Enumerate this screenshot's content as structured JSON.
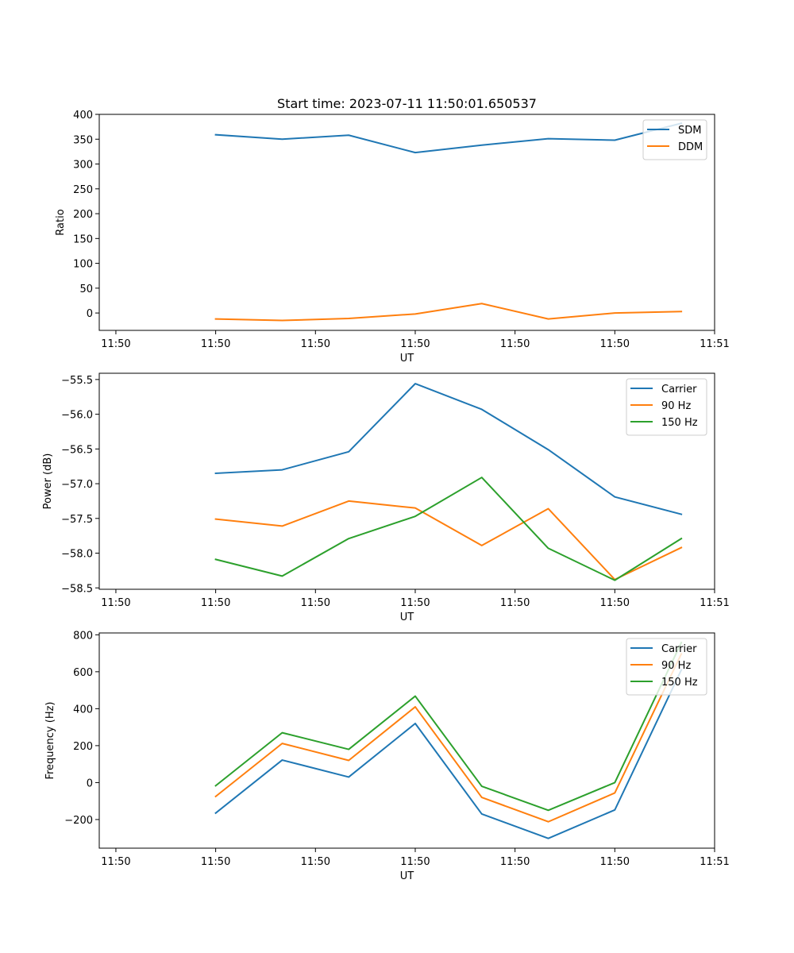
{
  "title": "Start time: 2023-07-11 11:50:01.650537",
  "chart_data": [
    {
      "type": "line",
      "title": "Start time: 2023-07-11 11:50:01.650537",
      "xlabel": "UT",
      "ylabel": "Ratio",
      "x": [
        0.35,
        0.55,
        0.75,
        0.95,
        1.15,
        1.35,
        1.55,
        1.75
      ],
      "xlim": [
        0.0,
        1.85
      ],
      "xticks": [
        0.05,
        0.35,
        0.65,
        0.95,
        1.25,
        1.55,
        1.85
      ],
      "xtick_labels": [
        "11:50",
        "11:50",
        "11:50",
        "11:50",
        "11:50",
        "11:50",
        "11:51"
      ],
      "ylim": [
        -35,
        400
      ],
      "yticks": [
        0,
        50,
        100,
        150,
        200,
        250,
        300,
        350,
        400
      ],
      "ytick_labels": [
        "0",
        "50",
        "100",
        "150",
        "200",
        "250",
        "300",
        "350",
        "400"
      ],
      "legend": "top-right",
      "series": [
        {
          "name": "SDM",
          "color": "#1f77b4",
          "values": [
            359,
            350,
            358,
            323,
            338,
            351,
            348,
            382
          ]
        },
        {
          "name": "DDM",
          "color": "#ff7f0e",
          "values": [
            -12,
            -15,
            -11,
            -2,
            19,
            -12,
            0,
            3
          ]
        }
      ]
    },
    {
      "type": "line",
      "xlabel": "UT",
      "ylabel": "Power (dB)",
      "x": [
        0.35,
        0.55,
        0.75,
        0.95,
        1.15,
        1.35,
        1.55,
        1.75
      ],
      "xlim": [
        0.0,
        1.85
      ],
      "xticks": [
        0.05,
        0.35,
        0.65,
        0.95,
        1.25,
        1.55,
        1.85
      ],
      "xtick_labels": [
        "11:50",
        "11:50",
        "11:50",
        "11:50",
        "11:50",
        "11:50",
        "11:51"
      ],
      "ylim": [
        -58.52,
        -55.41
      ],
      "yticks": [
        -58.5,
        -58.0,
        -57.5,
        -57.0,
        -56.5,
        -56.0,
        -55.5
      ],
      "ytick_labels": [
        "−58.5",
        "−58.0",
        "−57.5",
        "−57.0",
        "−56.5",
        "−56.0",
        "−55.5"
      ],
      "legend": "top-right",
      "series": [
        {
          "name": "Carrier",
          "color": "#1f77b4",
          "values": [
            -56.85,
            -56.8,
            -56.54,
            -55.56,
            -55.93,
            -56.51,
            -57.19,
            -57.44
          ]
        },
        {
          "name": "90 Hz",
          "color": "#ff7f0e",
          "values": [
            -57.51,
            -57.61,
            -57.25,
            -57.35,
            -57.89,
            -57.36,
            -58.38,
            -57.92
          ]
        },
        {
          "name": "150 Hz",
          "color": "#2ca02c",
          "values": [
            -58.09,
            -58.33,
            -57.79,
            -57.47,
            -56.91,
            -57.93,
            -58.39,
            -57.79
          ]
        }
      ]
    },
    {
      "type": "line",
      "xlabel": "UT",
      "ylabel": "Frequency (Hz)",
      "x": [
        0.35,
        0.55,
        0.75,
        0.95,
        1.15,
        1.35,
        1.55,
        1.75
      ],
      "xlim": [
        0.0,
        1.85
      ],
      "xticks": [
        0.05,
        0.35,
        0.65,
        0.95,
        1.25,
        1.55,
        1.85
      ],
      "xtick_labels": [
        "11:50",
        "11:50",
        "11:50",
        "11:50",
        "11:50",
        "11:50",
        "11:51"
      ],
      "ylim": [
        -355,
        810
      ],
      "yticks": [
        -200,
        0,
        200,
        400,
        600,
        800
      ],
      "ytick_labels": [
        "−200",
        "0",
        "200",
        "400",
        "600",
        "800"
      ],
      "legend": "top-right",
      "series": [
        {
          "name": "Carrier",
          "color": "#1f77b4",
          "values": [
            -165,
            122,
            30,
            320,
            -170,
            -302,
            -148,
            610
          ]
        },
        {
          "name": "90 Hz",
          "color": "#ff7f0e",
          "values": [
            -75,
            212,
            120,
            410,
            -80,
            -212,
            -56,
            697
          ]
        },
        {
          "name": "150 Hz",
          "color": "#2ca02c",
          "values": [
            -17,
            270,
            180,
            468,
            -20,
            -150,
            0,
            758
          ]
        }
      ]
    }
  ]
}
